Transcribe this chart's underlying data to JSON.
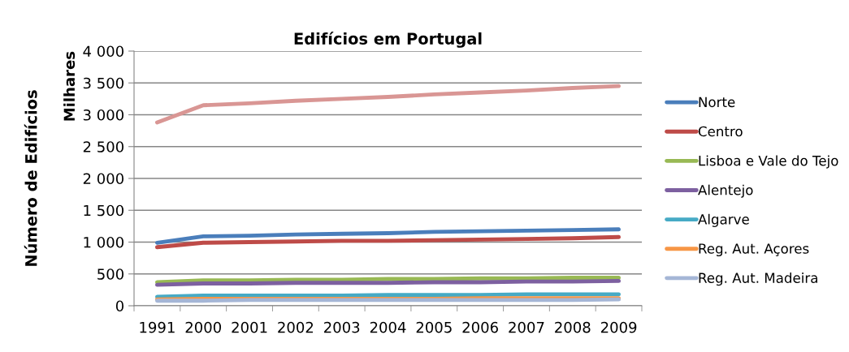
{
  "chart_data": {
    "type": "line",
    "title": "Edifícios em Portugal",
    "ylabel": "Número de Edifícios",
    "annotations": [
      "Milhares"
    ],
    "categories": [
      "1991",
      "2000",
      "2001",
      "2002",
      "2003",
      "2004",
      "2005",
      "2006",
      "2007",
      "2008",
      "2009"
    ],
    "series": [
      {
        "color": "#d99694",
        "values": [
          2880,
          3150,
          3180,
          3220,
          3250,
          3280,
          3320,
          3350,
          3380,
          3420,
          3450
        ]
      },
      {
        "name": "Norte",
        "color": "#4a7ebb",
        "values": [
          990,
          1090,
          1100,
          1120,
          1130,
          1140,
          1160,
          1170,
          1180,
          1190,
          1200
        ]
      },
      {
        "name": "Centro",
        "color": "#be4b48",
        "values": [
          920,
          990,
          1000,
          1010,
          1020,
          1020,
          1030,
          1040,
          1050,
          1060,
          1080
        ]
      },
      {
        "name": "Lisboa e Vale do Tejo",
        "color": "#98b954",
        "values": [
          370,
          400,
          400,
          410,
          410,
          420,
          420,
          430,
          430,
          440,
          440
        ]
      },
      {
        "name": "Alentejo",
        "color": "#7d60a0",
        "values": [
          330,
          350,
          350,
          360,
          360,
          360,
          370,
          370,
          380,
          380,
          390
        ]
      },
      {
        "name": "Algarve",
        "color": "#46aac5",
        "values": [
          140,
          160,
          160,
          160,
          160,
          170,
          170,
          170,
          180,
          180,
          180
        ]
      },
      {
        "name": "Reg. Aut. Açores",
        "color": "#f79646",
        "values": [
          100,
          110,
          110,
          110,
          110,
          110,
          110,
          120,
          120,
          120,
          120
        ]
      },
      {
        "name": "Reg. Aut. Madeira",
        "color": "#a5b6d6",
        "values": [
          80,
          80,
          90,
          90,
          90,
          90,
          90,
          90,
          90,
          90,
          100
        ]
      }
    ],
    "ylim": [
      0,
      4000
    ],
    "yticks": [
      0,
      500,
      {
        "value": 1000,
        "label": "1 000"
      },
      {
        "value": 1500,
        "label": "1 500"
      },
      {
        "value": 2000,
        "label": "2 000"
      },
      {
        "value": 2500,
        "label": "2 500"
      },
      {
        "value": 3000,
        "label": "3 000"
      },
      {
        "value": 3500,
        "label": "3 500"
      },
      {
        "value": 4000,
        "label": "4 000"
      }
    ],
    "grid": "y",
    "legend": "right",
    "marker": "none",
    "line_style": "solid"
  }
}
